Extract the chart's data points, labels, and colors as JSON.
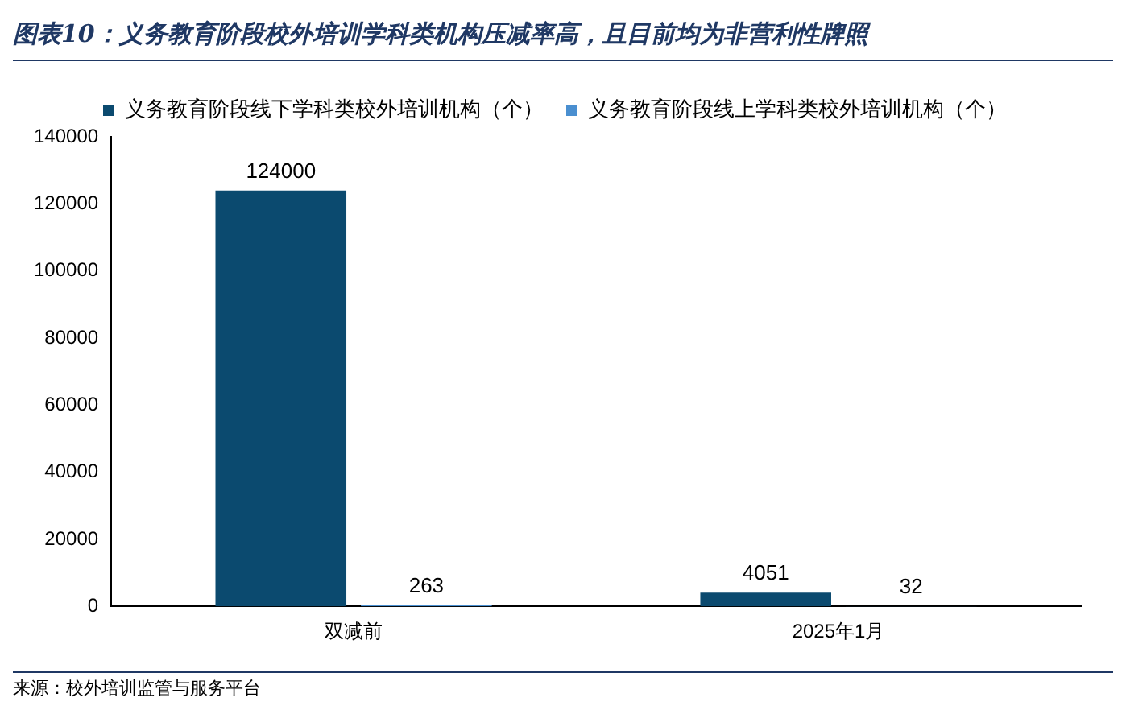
{
  "chart_data": {
    "type": "bar",
    "title": "图表10：义务教育阶段校外培训学科类机构压减率高，且目前均为非营利性牌照",
    "categories": [
      "双减前",
      "2025年1月"
    ],
    "series": [
      {
        "name": "义务教育阶段线下学科类校外培训机构（个）",
        "color": "#0b4a6f",
        "values": [
          124000,
          4051
        ]
      },
      {
        "name": "义务教育阶段线上学科类校外培训机构（个）",
        "color": "#4a8fd0",
        "values": [
          263,
          32
        ]
      }
    ],
    "ylim": [
      0,
      140000
    ],
    "yticks": [
      0,
      20000,
      40000,
      60000,
      80000,
      100000,
      120000,
      140000
    ],
    "grid": false,
    "legend": "top",
    "data_labels": true,
    "annotations": [
      "来源：校外培训监管与服务平台"
    ]
  }
}
